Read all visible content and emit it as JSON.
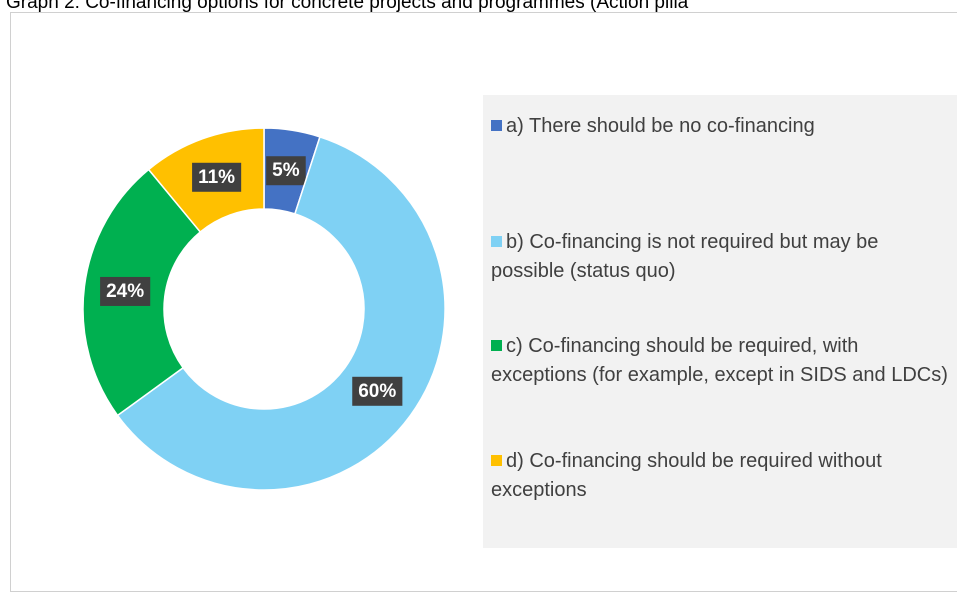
{
  "chart_data": {
    "type": "donut",
    "title": "Graph 2: Co-financing options for concrete projects and programmes (Action pilla",
    "categories": [
      "a) There should be no co-financing",
      "b) Co-financing is not required but may be possible (status quo)",
      "c) Co-financing should be required, with exceptions (for example, except in SIDS and LDCs)",
      "d) Co-financing should be required without exceptions"
    ],
    "values": [
      5,
      60,
      24,
      11
    ],
    "value_labels": [
      "5%",
      "60%",
      "24%",
      "11%"
    ],
    "colors": [
      "#4472c4",
      "#7fd1f4",
      "#00b050",
      "#ffc000"
    ]
  }
}
